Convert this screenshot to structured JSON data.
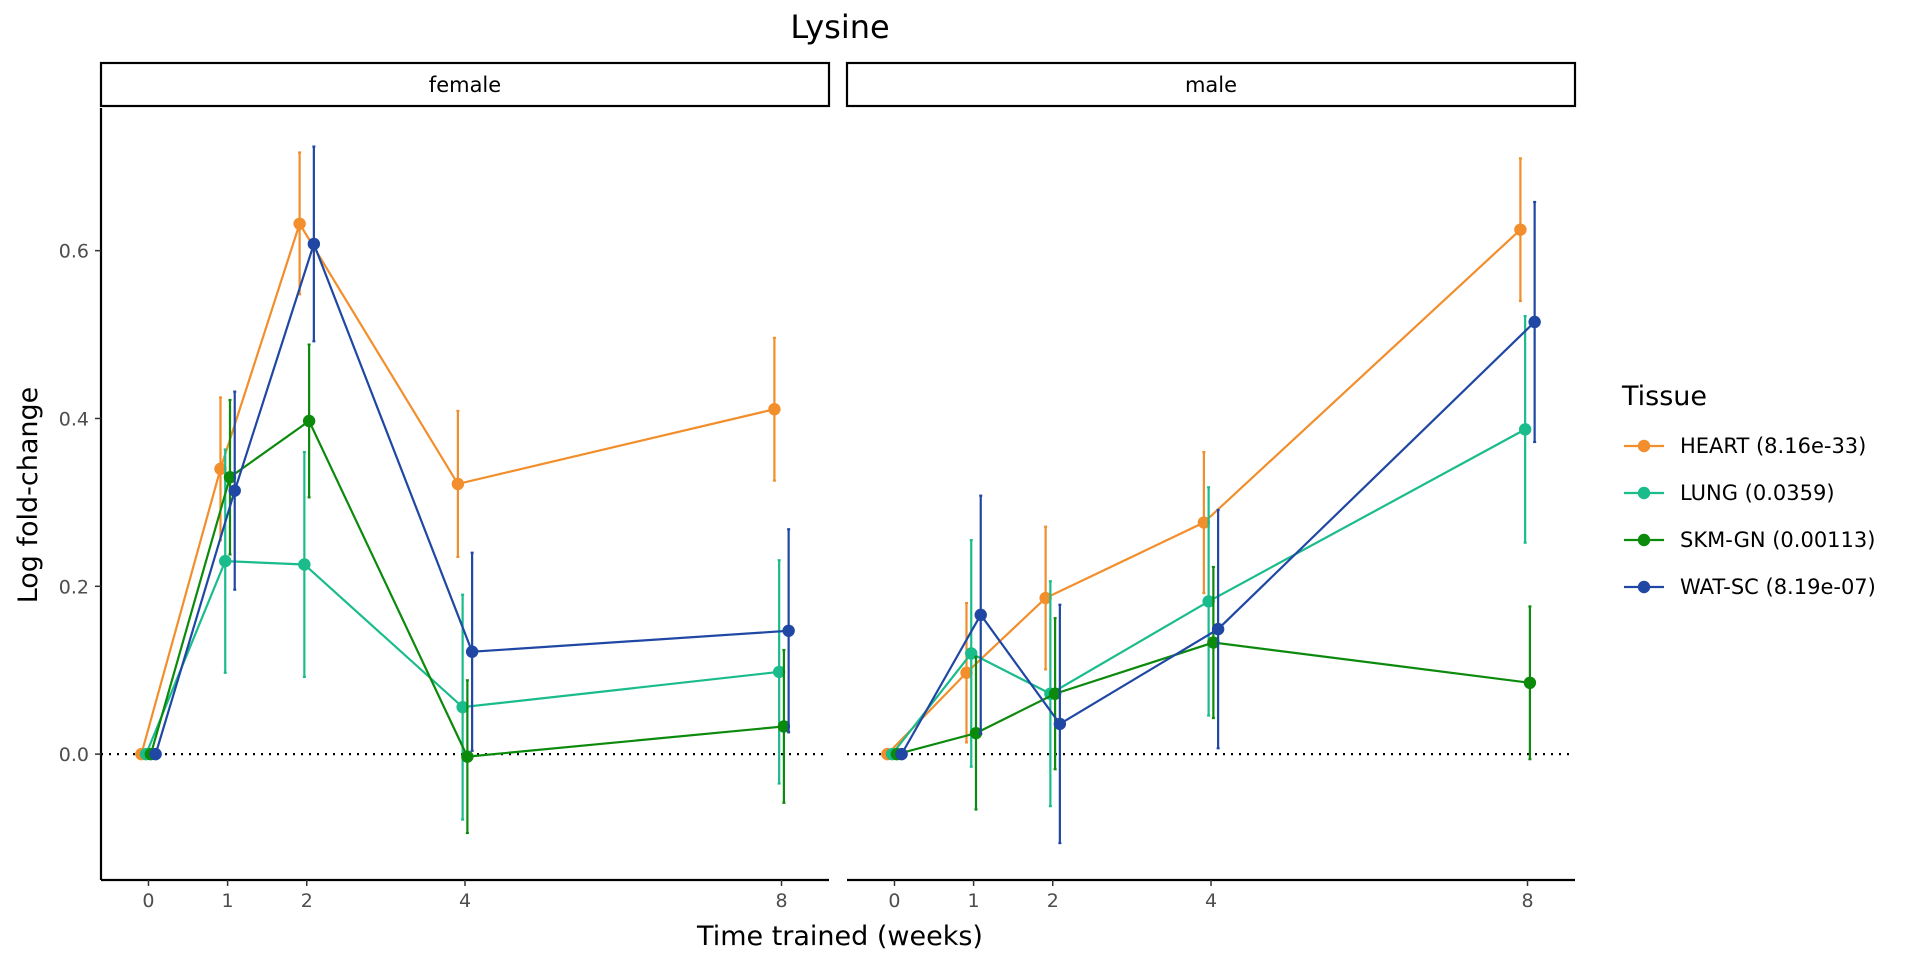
{
  "chart_data": {
    "type": "line",
    "title": "Lysine",
    "xlabel": "Time trained (weeks)",
    "ylabel": "Log fold-change",
    "xticks": [
      0,
      1,
      2,
      4,
      8
    ],
    "yticks": [
      0.0,
      0.2,
      0.4,
      0.6
    ],
    "ytick_labels": [
      "0.0",
      "0.2",
      "0.4",
      "0.6"
    ],
    "ylim": [
      -0.15,
      0.77
    ],
    "xlim": [
      -0.6,
      8.6
    ],
    "reference_line": 0,
    "legend_title": "Tissue",
    "legend_position": "right",
    "series": [
      {
        "key": "heart",
        "name": "HEART (8.16e-33)",
        "color": "#F28E2B"
      },
      {
        "key": "lung",
        "name": "LUNG (0.0359)",
        "color": "#1ABC8C"
      },
      {
        "key": "skm",
        "name": "SKM-GN (0.00113)",
        "color": "#0C8A0C"
      },
      {
        "key": "wat",
        "name": "WAT-SC (8.19e-07)",
        "color": "#1F47A3"
      }
    ],
    "panels": [
      {
        "label": "female",
        "data": {
          "heart": {
            "y": [
              0.0,
              0.34,
              0.632,
              0.322,
              0.411
            ],
            "lo": [
              0.0,
              0.255,
              0.548,
              0.235,
              0.326
            ],
            "hi": [
              0.0,
              0.425,
              0.717,
              0.409,
              0.496
            ]
          },
          "lung": {
            "y": [
              0.0,
              0.23,
              0.226,
              0.056,
              0.098
            ],
            "lo": [
              0.0,
              0.097,
              0.092,
              -0.078,
              -0.035
            ],
            "hi": [
              0.0,
              0.363,
              0.36,
              0.19,
              0.231
            ]
          },
          "skm": {
            "y": [
              0.0,
              0.33,
              0.397,
              -0.003,
              0.033
            ],
            "lo": [
              0.0,
              0.238,
              0.306,
              -0.094,
              -0.058
            ],
            "hi": [
              0.0,
              0.422,
              0.488,
              0.088,
              0.124
            ]
          },
          "wat": {
            "y": [
              0.0,
              0.314,
              0.608,
              0.122,
              0.147
            ],
            "lo": [
              0.0,
              0.196,
              0.492,
              0.004,
              0.026
            ],
            "hi": [
              0.0,
              0.432,
              0.724,
              0.24,
              0.268
            ]
          }
        }
      },
      {
        "label": "male",
        "data": {
          "heart": {
            "y": [
              0.0,
              0.097,
              0.186,
              0.276,
              0.625
            ],
            "lo": [
              0.0,
              0.014,
              0.101,
              0.192,
              0.54
            ],
            "hi": [
              0.0,
              0.18,
              0.271,
              0.36,
              0.71
            ]
          },
          "lung": {
            "y": [
              0.0,
              0.12,
              0.072,
              0.182,
              0.387
            ],
            "lo": [
              0.0,
              -0.015,
              -0.062,
              0.046,
              0.252
            ],
            "hi": [
              0.0,
              0.255,
              0.206,
              0.318,
              0.522
            ]
          },
          "skm": {
            "y": [
              0.0,
              0.025,
              0.072,
              0.133,
              0.085
            ],
            "lo": [
              0.0,
              -0.066,
              -0.018,
              0.043,
              -0.006
            ],
            "hi": [
              0.0,
              0.116,
              0.162,
              0.223,
              0.176
            ]
          },
          "wat": {
            "y": [
              0.0,
              0.166,
              0.036,
              0.149,
              0.515
            ],
            "lo": [
              0.0,
              0.024,
              -0.106,
              0.007,
              0.372
            ],
            "hi": [
              0.0,
              0.308,
              0.178,
              0.291,
              0.658
            ]
          }
        }
      }
    ]
  }
}
